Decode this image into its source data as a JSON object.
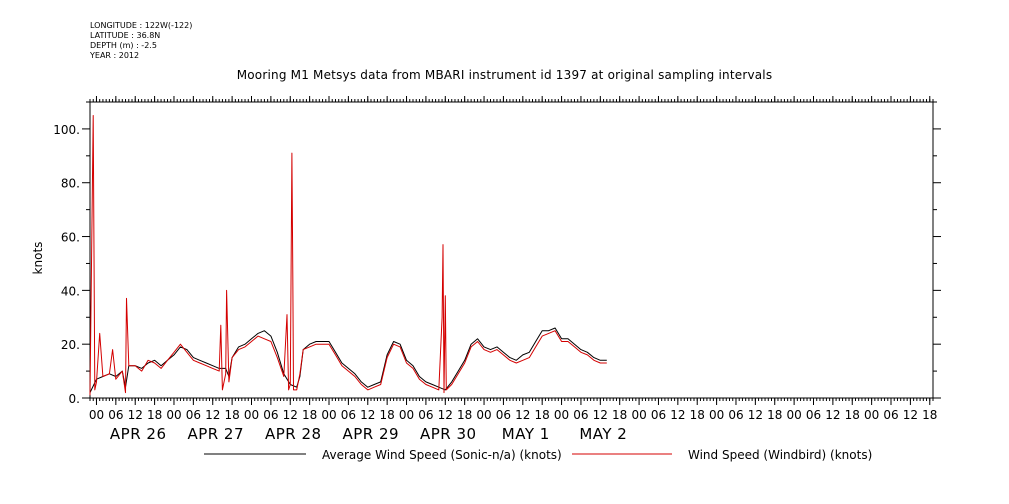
{
  "header": {
    "meta": [
      "LONGITUDE : 122W(-122)",
      "LATITUDE : 36.8N",
      "DEPTH (m) : -2.5",
      "YEAR : 2012"
    ],
    "title": "Mooring M1 Metsys data from MBARI instrument id 1397 at original sampling intervals"
  },
  "chart_data": {
    "type": "line",
    "title": "Mooring M1 Metsys data from MBARI instrument id 1397 at original sampling intervals",
    "xlabel": "",
    "ylabel": "knots",
    "x_unit": "hours since 00 APR 26 2012",
    "xlim": [
      -2,
      259
    ],
    "ylim": [
      0,
      110
    ],
    "y_ticks": [
      0,
      20,
      40,
      60,
      80,
      100
    ],
    "y_tick_labels": [
      "0.",
      "20.",
      "40.",
      "60.",
      "80.",
      "100."
    ],
    "x_ticks": [
      0,
      6,
      12,
      18,
      24,
      30,
      36,
      42,
      48,
      54,
      60,
      66,
      72,
      78,
      84,
      90,
      96,
      102,
      108,
      114,
      120,
      126,
      132,
      138,
      144,
      150,
      156,
      162,
      168,
      174,
      180,
      186,
      192,
      198,
      204,
      210,
      216,
      222,
      228,
      234,
      240,
      246,
      252,
      258
    ],
    "x_tick_labels": [
      "00",
      "06",
      "12",
      "18",
      "00",
      "06",
      "12",
      "18",
      "00",
      "06",
      "12",
      "18",
      "00",
      "06",
      "12",
      "18",
      "00",
      "06",
      "12",
      "18",
      "00",
      "06",
      "12",
      "18",
      "00",
      "06",
      "12",
      "18",
      "00",
      "06",
      "12",
      "18",
      "00",
      "06",
      "12",
      "18",
      "00",
      "06",
      "12",
      "18",
      "00",
      "06",
      "12",
      "18"
    ],
    "day_labels": [
      {
        "label": "APR 26",
        "x": 12
      },
      {
        "label": "APR 27",
        "x": 36
      },
      {
        "label": "APR 28",
        "x": 60
      },
      {
        "label": "APR 29",
        "x": 84
      },
      {
        "label": "APR 30",
        "x": 108
      },
      {
        "label": "MAY  1",
        "x": 132
      },
      {
        "label": "MAY  2",
        "x": 156
      }
    ],
    "grid": false,
    "legend_position": "bottom",
    "series": [
      {
        "name": "Average Wind Speed (Sonic-n/a) (knots)",
        "color": "#000000",
        "points": [
          [
            -2,
            2
          ],
          [
            0,
            7
          ],
          [
            2,
            8
          ],
          [
            4,
            9
          ],
          [
            6,
            8
          ],
          [
            8,
            10
          ],
          [
            9,
            4
          ],
          [
            10,
            12
          ],
          [
            12,
            12
          ],
          [
            14,
            11
          ],
          [
            16,
            13
          ],
          [
            18,
            14
          ],
          [
            20,
            12
          ],
          [
            22,
            14
          ],
          [
            24,
            16
          ],
          [
            26,
            19
          ],
          [
            28,
            18
          ],
          [
            30,
            15
          ],
          [
            32,
            14
          ],
          [
            34,
            13
          ],
          [
            36,
            12
          ],
          [
            38,
            11
          ],
          [
            40,
            11
          ],
          [
            41,
            8
          ],
          [
            42,
            15
          ],
          [
            44,
            19
          ],
          [
            46,
            20
          ],
          [
            48,
            22
          ],
          [
            50,
            24
          ],
          [
            52,
            25
          ],
          [
            54,
            23
          ],
          [
            56,
            17
          ],
          [
            58,
            9
          ],
          [
            60,
            5
          ],
          [
            62,
            4
          ],
          [
            63,
            8
          ],
          [
            64,
            18
          ],
          [
            66,
            20
          ],
          [
            68,
            21
          ],
          [
            70,
            21
          ],
          [
            72,
            21
          ],
          [
            74,
            17
          ],
          [
            76,
            13
          ],
          [
            78,
            11
          ],
          [
            80,
            9
          ],
          [
            82,
            6
          ],
          [
            84,
            4
          ],
          [
            86,
            5
          ],
          [
            88,
            6
          ],
          [
            90,
            16
          ],
          [
            92,
            21
          ],
          [
            94,
            20
          ],
          [
            96,
            14
          ],
          [
            98,
            12
          ],
          [
            100,
            8
          ],
          [
            102,
            6
          ],
          [
            104,
            5
          ],
          [
            106,
            4
          ],
          [
            108,
            3
          ],
          [
            110,
            6
          ],
          [
            112,
            10
          ],
          [
            114,
            14
          ],
          [
            116,
            20
          ],
          [
            118,
            22
          ],
          [
            120,
            19
          ],
          [
            122,
            18
          ],
          [
            124,
            19
          ],
          [
            126,
            17
          ],
          [
            128,
            15
          ],
          [
            130,
            14
          ],
          [
            132,
            16
          ],
          [
            134,
            17
          ],
          [
            136,
            21
          ],
          [
            138,
            25
          ],
          [
            140,
            25
          ],
          [
            142,
            26
          ],
          [
            144,
            22
          ],
          [
            146,
            22
          ],
          [
            148,
            20
          ],
          [
            150,
            18
          ],
          [
            152,
            17
          ],
          [
            154,
            15
          ],
          [
            156,
            14
          ],
          [
            158,
            14
          ]
        ]
      },
      {
        "name": "Wind Speed (Windbird) (knots)",
        "color": "#d40000",
        "points": [
          [
            -2,
            1
          ],
          [
            -1.5,
            53
          ],
          [
            -1,
            105
          ],
          [
            -0.5,
            3
          ],
          [
            0,
            6
          ],
          [
            1,
            24
          ],
          [
            2,
            8
          ],
          [
            4,
            9
          ],
          [
            5,
            18
          ],
          [
            6,
            7
          ],
          [
            8,
            10
          ],
          [
            9,
            2
          ],
          [
            9.3,
            37
          ],
          [
            10,
            12
          ],
          [
            12,
            12
          ],
          [
            14,
            10
          ],
          [
            16,
            14
          ],
          [
            18,
            13
          ],
          [
            20,
            11
          ],
          [
            22,
            14
          ],
          [
            24,
            17
          ],
          [
            26,
            20
          ],
          [
            28,
            17
          ],
          [
            30,
            14
          ],
          [
            32,
            13
          ],
          [
            34,
            12
          ],
          [
            36,
            11
          ],
          [
            38,
            10
          ],
          [
            38.5,
            27
          ],
          [
            39,
            3
          ],
          [
            40,
            9
          ],
          [
            40.3,
            40
          ],
          [
            41,
            6
          ],
          [
            42,
            15
          ],
          [
            44,
            18
          ],
          [
            46,
            19
          ],
          [
            48,
            21
          ],
          [
            50,
            23
          ],
          [
            52,
            22
          ],
          [
            54,
            21
          ],
          [
            56,
            15
          ],
          [
            58,
            8
          ],
          [
            59,
            31
          ],
          [
            59.5,
            3
          ],
          [
            60,
            5
          ],
          [
            60.5,
            91
          ],
          [
            60.8,
            46
          ],
          [
            61,
            3
          ],
          [
            62,
            3
          ],
          [
            63,
            9
          ],
          [
            64,
            18
          ],
          [
            66,
            19
          ],
          [
            68,
            20
          ],
          [
            70,
            20
          ],
          [
            72,
            20
          ],
          [
            74,
            16
          ],
          [
            76,
            12
          ],
          [
            78,
            10
          ],
          [
            80,
            8
          ],
          [
            82,
            5
          ],
          [
            84,
            3
          ],
          [
            86,
            4
          ],
          [
            88,
            5
          ],
          [
            90,
            15
          ],
          [
            92,
            20
          ],
          [
            94,
            19
          ],
          [
            96,
            13
          ],
          [
            98,
            11
          ],
          [
            100,
            7
          ],
          [
            102,
            5
          ],
          [
            104,
            4
          ],
          [
            106,
            3
          ],
          [
            107,
            30
          ],
          [
            107.3,
            57
          ],
          [
            107.6,
            2
          ],
          [
            108,
            38
          ],
          [
            108.3,
            3
          ],
          [
            110,
            5
          ],
          [
            112,
            9
          ],
          [
            114,
            13
          ],
          [
            116,
            19
          ],
          [
            118,
            21
          ],
          [
            120,
            18
          ],
          [
            122,
            17
          ],
          [
            124,
            18
          ],
          [
            126,
            16
          ],
          [
            128,
            14
          ],
          [
            130,
            13
          ],
          [
            132,
            14
          ],
          [
            134,
            15
          ],
          [
            136,
            19
          ],
          [
            138,
            23
          ],
          [
            140,
            24
          ],
          [
            142,
            25
          ],
          [
            144,
            21
          ],
          [
            146,
            21
          ],
          [
            148,
            19
          ],
          [
            150,
            17
          ],
          [
            152,
            16
          ],
          [
            154,
            14
          ],
          [
            156,
            13
          ],
          [
            158,
            13
          ]
        ]
      }
    ]
  }
}
